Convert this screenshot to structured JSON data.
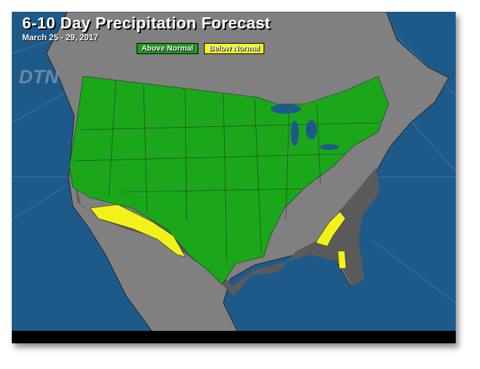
{
  "title": "6-10 Day Precipitation Forecast",
  "subtitle": "March 25 - 29, 2017",
  "legend": [
    {
      "label": "Above Normal",
      "color": "#1e9a1e"
    },
    {
      "label": "Below Normal",
      "color": "#f2f21a"
    }
  ],
  "logo": "DTN",
  "colors": {
    "ocean": "#1d5a8a",
    "land": "#808080",
    "near_normal": "#5a5a5a",
    "above": "#1aa81a",
    "below": "#f2f21a"
  }
}
